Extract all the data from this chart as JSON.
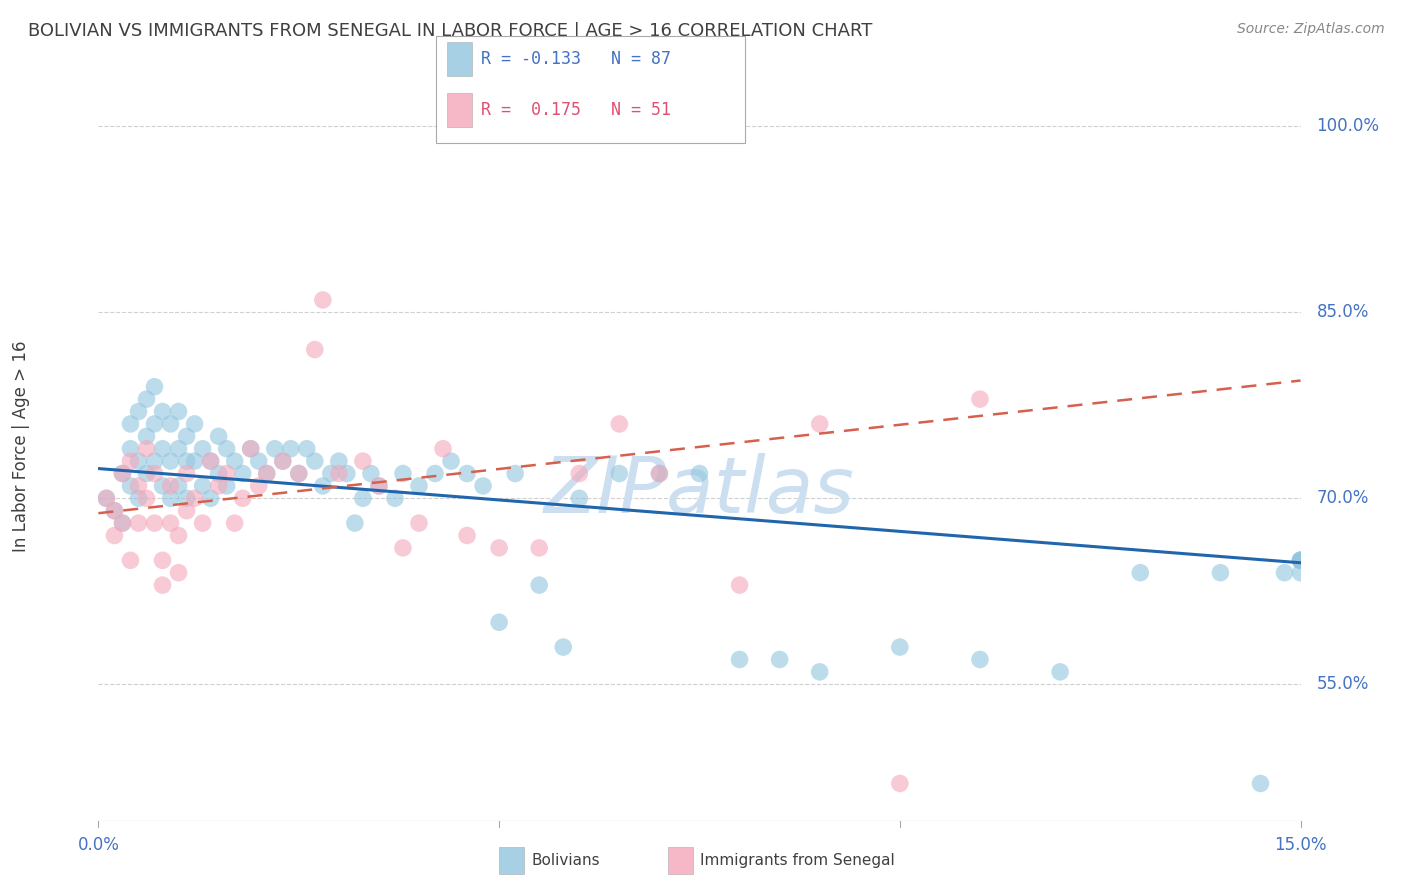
{
  "title": "BOLIVIAN VS IMMIGRANTS FROM SENEGAL IN LABOR FORCE | AGE > 16 CORRELATION CHART",
  "source": "Source: ZipAtlas.com",
  "ylabel": "In Labor Force | Age > 16",
  "ytick_labels": [
    "55.0%",
    "70.0%",
    "85.0%",
    "100.0%"
  ],
  "ytick_values": [
    0.55,
    0.7,
    0.85,
    1.0
  ],
  "xmin": 0.0,
  "xmax": 0.15,
  "ymin": 0.44,
  "ymax": 1.03,
  "blue_color": "#92c5de",
  "pink_color": "#f4a7b9",
  "trendline_blue_color": "#2166ac",
  "trendline_pink_color": "#d6604d",
  "legend_R_blue": "-0.133",
  "legend_N_blue": "87",
  "legend_R_pink": "0.175",
  "legend_N_pink": "51",
  "legend_label_blue": "Bolivians",
  "legend_label_pink": "Immigrants from Senegal",
  "blue_points_x": [
    0.001,
    0.002,
    0.003,
    0.003,
    0.004,
    0.004,
    0.004,
    0.005,
    0.005,
    0.005,
    0.006,
    0.006,
    0.006,
    0.007,
    0.007,
    0.007,
    0.008,
    0.008,
    0.008,
    0.009,
    0.009,
    0.009,
    0.01,
    0.01,
    0.01,
    0.011,
    0.011,
    0.011,
    0.012,
    0.012,
    0.013,
    0.013,
    0.014,
    0.014,
    0.015,
    0.015,
    0.016,
    0.016,
    0.017,
    0.018,
    0.019,
    0.02,
    0.021,
    0.022,
    0.023,
    0.024,
    0.025,
    0.026,
    0.027,
    0.028,
    0.029,
    0.03,
    0.031,
    0.032,
    0.033,
    0.034,
    0.035,
    0.037,
    0.038,
    0.04,
    0.042,
    0.044,
    0.046,
    0.048,
    0.05,
    0.052,
    0.055,
    0.058,
    0.06,
    0.065,
    0.07,
    0.075,
    0.08,
    0.085,
    0.09,
    0.1,
    0.11,
    0.12,
    0.13,
    0.14,
    0.145,
    0.148,
    0.15,
    0.15,
    0.15,
    0.15,
    0.15
  ],
  "blue_points_y": [
    0.7,
    0.69,
    0.72,
    0.68,
    0.76,
    0.74,
    0.71,
    0.77,
    0.73,
    0.7,
    0.78,
    0.75,
    0.72,
    0.79,
    0.76,
    0.73,
    0.77,
    0.74,
    0.71,
    0.76,
    0.73,
    0.7,
    0.77,
    0.74,
    0.71,
    0.75,
    0.73,
    0.7,
    0.76,
    0.73,
    0.74,
    0.71,
    0.73,
    0.7,
    0.75,
    0.72,
    0.74,
    0.71,
    0.73,
    0.72,
    0.74,
    0.73,
    0.72,
    0.74,
    0.73,
    0.74,
    0.72,
    0.74,
    0.73,
    0.71,
    0.72,
    0.73,
    0.72,
    0.68,
    0.7,
    0.72,
    0.71,
    0.7,
    0.72,
    0.71,
    0.72,
    0.73,
    0.72,
    0.71,
    0.6,
    0.72,
    0.63,
    0.58,
    0.7,
    0.72,
    0.72,
    0.72,
    0.57,
    0.57,
    0.56,
    0.58,
    0.57,
    0.56,
    0.64,
    0.64,
    0.47,
    0.64,
    0.65,
    0.65,
    0.65,
    0.65,
    0.64
  ],
  "pink_points_x": [
    0.001,
    0.002,
    0.002,
    0.003,
    0.003,
    0.004,
    0.004,
    0.005,
    0.005,
    0.006,
    0.006,
    0.007,
    0.007,
    0.008,
    0.008,
    0.009,
    0.009,
    0.01,
    0.01,
    0.011,
    0.011,
    0.012,
    0.013,
    0.014,
    0.015,
    0.016,
    0.017,
    0.018,
    0.019,
    0.02,
    0.021,
    0.023,
    0.025,
    0.027,
    0.028,
    0.03,
    0.033,
    0.035,
    0.038,
    0.04,
    0.043,
    0.046,
    0.05,
    0.055,
    0.06,
    0.065,
    0.07,
    0.08,
    0.09,
    0.1,
    0.11
  ],
  "pink_points_y": [
    0.7,
    0.69,
    0.67,
    0.72,
    0.68,
    0.73,
    0.65,
    0.71,
    0.68,
    0.74,
    0.7,
    0.72,
    0.68,
    0.65,
    0.63,
    0.71,
    0.68,
    0.67,
    0.64,
    0.72,
    0.69,
    0.7,
    0.68,
    0.73,
    0.71,
    0.72,
    0.68,
    0.7,
    0.74,
    0.71,
    0.72,
    0.73,
    0.72,
    0.82,
    0.86,
    0.72,
    0.73,
    0.71,
    0.66,
    0.68,
    0.74,
    0.67,
    0.66,
    0.66,
    0.72,
    0.76,
    0.72,
    0.63,
    0.76,
    0.47,
    0.78
  ],
  "blue_trend_x": [
    0.0,
    0.15
  ],
  "blue_trend_y": [
    0.724,
    0.648
  ],
  "pink_trend_x": [
    0.0,
    0.15
  ],
  "pink_trend_y": [
    0.688,
    0.795
  ],
  "grid_color": "#d0d0d0",
  "watermark_text": "ZIPatlas",
  "watermark_color": "#ccdff0",
  "bg_color": "#ffffff",
  "title_color": "#404040",
  "tick_label_color": "#4472c4",
  "ylabel_color": "#404040",
  "source_color": "#888888"
}
